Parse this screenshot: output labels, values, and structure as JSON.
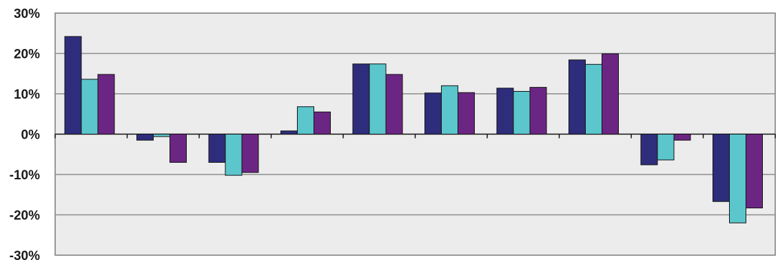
{
  "chart_data": {
    "type": "bar",
    "categories": [
      "",
      "",
      "",
      "",
      "",
      "",
      "",
      "",
      "",
      ""
    ],
    "series": [
      {
        "color": "#2e2d7c",
        "values": [
          24.2,
          -1.5,
          -7.0,
          0.8,
          17.4,
          10.2,
          11.4,
          18.4,
          -7.6,
          -16.7
        ]
      },
      {
        "color": "#5bc6cc",
        "values": [
          13.6,
          -0.6,
          -10.2,
          6.8,
          17.4,
          12.0,
          10.6,
          17.3,
          -6.4,
          -22.0
        ]
      },
      {
        "color": "#6b2683",
        "values": [
          14.8,
          -7.0,
          -9.5,
          5.5,
          14.8,
          10.3,
          11.6,
          19.9,
          -1.5,
          -18.3
        ]
      }
    ],
    "yticks": [
      "30%",
      "20%",
      "10%",
      "0%",
      "-10%",
      "-20%",
      "-30%"
    ],
    "ylim": [
      -30,
      30
    ],
    "grid": true,
    "plot_background": "#ececec",
    "gridline_color": "#8c8c8c",
    "legend": "none",
    "title": "",
    "xlabel": "",
    "ylabel": ""
  }
}
